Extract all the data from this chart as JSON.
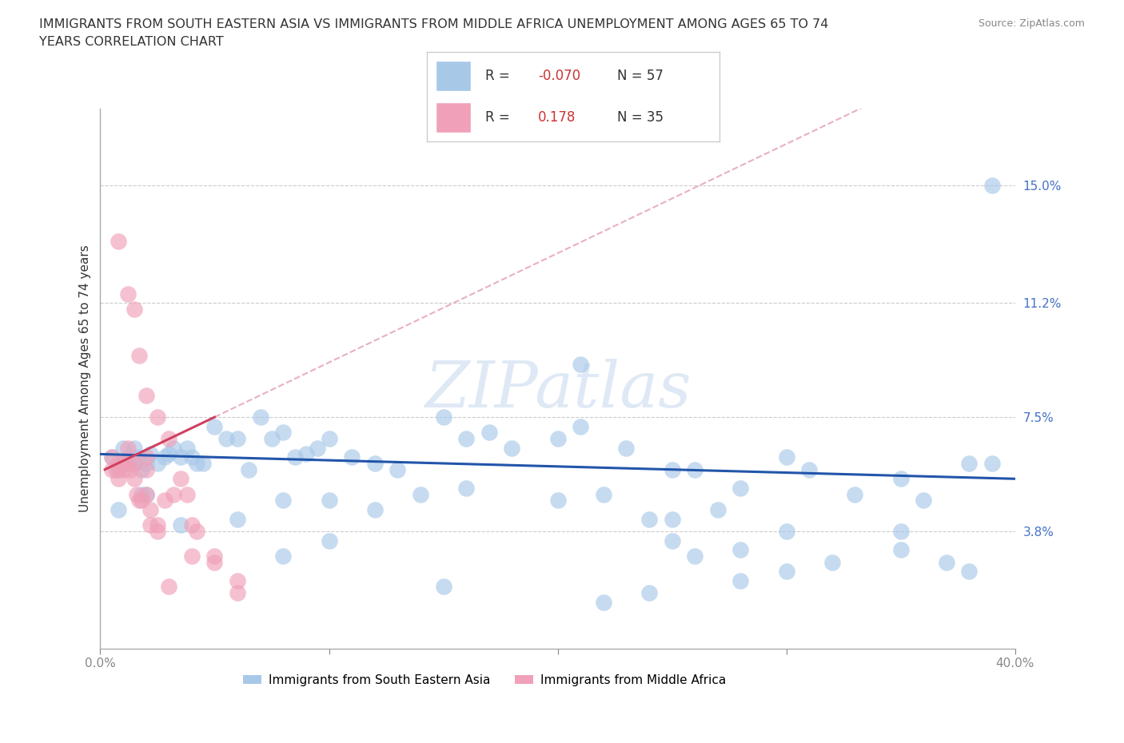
{
  "title": "IMMIGRANTS FROM SOUTH EASTERN ASIA VS IMMIGRANTS FROM MIDDLE AFRICA UNEMPLOYMENT AMONG AGES 65 TO 74\nYEARS CORRELATION CHART",
  "source": "Source: ZipAtlas.com",
  "ylabel": "Unemployment Among Ages 65 to 74 years",
  "xlim": [
    0.0,
    0.4
  ],
  "ylim": [
    0.0,
    0.175
  ],
  "ytick_positions": [
    0.038,
    0.075,
    0.112,
    0.15
  ],
  "ytick_labels": [
    "3.8%",
    "7.5%",
    "11.2%",
    "15.0%"
  ],
  "legend1_label": "Immigrants from South Eastern Asia",
  "legend2_label": "Immigrants from Middle Africa",
  "r1_label": "-0.070",
  "n1_label": "57",
  "r2_label": "0.178",
  "n2_label": "35",
  "color_blue": "#A8C8E8",
  "color_pink": "#F0A0B8",
  "line_color_blue": "#2255AA",
  "line_color_pink": "#D04060",
  "line_color_pink_dashed": "#E8B0C0",
  "blue_scatter_x": [
    0.005,
    0.008,
    0.01,
    0.01,
    0.012,
    0.013,
    0.015,
    0.015,
    0.017,
    0.018,
    0.02,
    0.022,
    0.025,
    0.028,
    0.03,
    0.032,
    0.035,
    0.038,
    0.04,
    0.042,
    0.045,
    0.05,
    0.055,
    0.06,
    0.065,
    0.07,
    0.075,
    0.08,
    0.085,
    0.09,
    0.095,
    0.1,
    0.11,
    0.12,
    0.13,
    0.15,
    0.16,
    0.17,
    0.18,
    0.2,
    0.21,
    0.23,
    0.25,
    0.26,
    0.28,
    0.3,
    0.31,
    0.33,
    0.35,
    0.36,
    0.38,
    0.39,
    0.25,
    0.27,
    0.21,
    0.39,
    0.008,
    0.018
  ],
  "blue_scatter_y": [
    0.062,
    0.058,
    0.065,
    0.06,
    0.06,
    0.062,
    0.065,
    0.06,
    0.062,
    0.058,
    0.06,
    0.063,
    0.06,
    0.062,
    0.063,
    0.065,
    0.062,
    0.065,
    0.062,
    0.06,
    0.06,
    0.072,
    0.068,
    0.068,
    0.058,
    0.075,
    0.068,
    0.07,
    0.062,
    0.063,
    0.065,
    0.068,
    0.062,
    0.06,
    0.058,
    0.075,
    0.068,
    0.07,
    0.065,
    0.068,
    0.072,
    0.065,
    0.058,
    0.058,
    0.052,
    0.062,
    0.058,
    0.05,
    0.055,
    0.048,
    0.06,
    0.06,
    0.042,
    0.045,
    0.092,
    0.15,
    0.045,
    0.05
  ],
  "blue_scatter_x2": [
    0.02,
    0.035,
    0.06,
    0.08,
    0.1,
    0.12,
    0.14,
    0.16,
    0.2,
    0.22,
    0.24,
    0.25,
    0.26,
    0.28,
    0.3,
    0.32,
    0.35,
    0.37,
    0.38,
    0.08,
    0.1,
    0.15,
    0.28,
    0.3,
    0.35,
    0.22,
    0.24
  ],
  "blue_scatter_y2": [
    0.05,
    0.04,
    0.042,
    0.048,
    0.048,
    0.045,
    0.05,
    0.052,
    0.048,
    0.05,
    0.042,
    0.035,
    0.03,
    0.032,
    0.038,
    0.028,
    0.032,
    0.028,
    0.025,
    0.03,
    0.035,
    0.02,
    0.022,
    0.025,
    0.038,
    0.015,
    0.018
  ],
  "pink_scatter_x": [
    0.005,
    0.005,
    0.007,
    0.008,
    0.008,
    0.01,
    0.01,
    0.012,
    0.012,
    0.013,
    0.015,
    0.015,
    0.016,
    0.017,
    0.018,
    0.02,
    0.02,
    0.02,
    0.022,
    0.022,
    0.025,
    0.025,
    0.028,
    0.03,
    0.032,
    0.035,
    0.038,
    0.04,
    0.042,
    0.05,
    0.06,
    0.06,
    0.05,
    0.04,
    0.03
  ],
  "pink_scatter_y": [
    0.062,
    0.058,
    0.058,
    0.06,
    0.055,
    0.06,
    0.058,
    0.065,
    0.06,
    0.058,
    0.06,
    0.055,
    0.05,
    0.048,
    0.048,
    0.062,
    0.058,
    0.05,
    0.045,
    0.04,
    0.04,
    0.038,
    0.048,
    0.068,
    0.05,
    0.055,
    0.05,
    0.04,
    0.038,
    0.03,
    0.022,
    0.018,
    0.028,
    0.03,
    0.02
  ],
  "pink_high_x": [
    0.008,
    0.012,
    0.015,
    0.017,
    0.02,
    0.025
  ],
  "pink_high_y": [
    0.132,
    0.115,
    0.11,
    0.095,
    0.082,
    0.075
  ],
  "watermark": "ZIPatlas",
  "background_color": "#FFFFFF"
}
